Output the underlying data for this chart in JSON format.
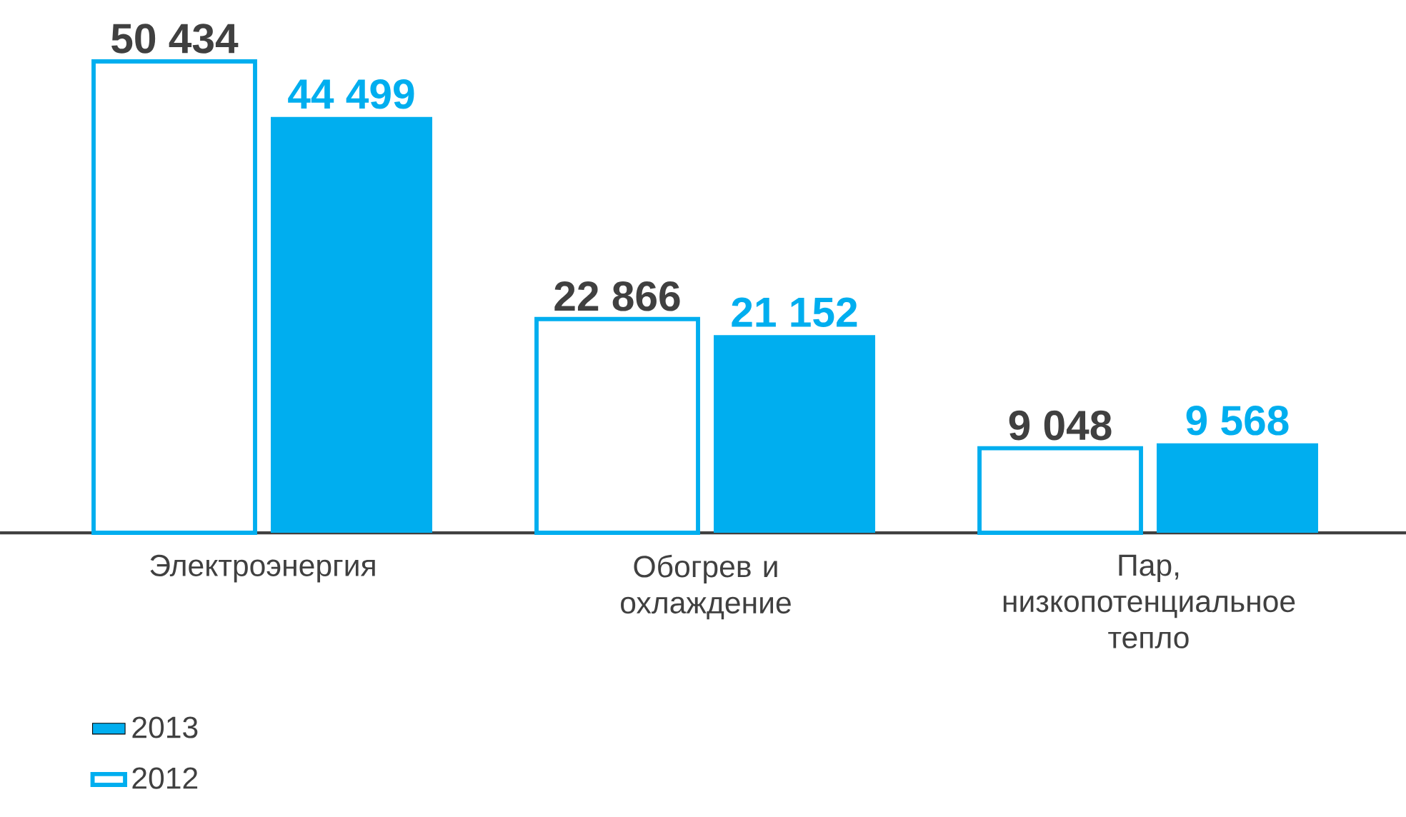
{
  "chart_data": {
    "type": "bar",
    "categories": [
      "Электроэнергия",
      "Обогрев и охлаждение",
      "Пар, низкопотенциальное тепло"
    ],
    "series": [
      {
        "name": "2012",
        "color": "#00aeef",
        "values": [
          50434,
          22866,
          9048
        ],
        "value_labels": [
          "50 434",
          "22 866",
          "9 048"
        ]
      },
      {
        "name": "2013",
        "color": "#00aeef",
        "values": [
          44499,
          21152,
          9568
        ],
        "value_labels": [
          "44 499",
          "21 152",
          "9 568"
        ]
      }
    ],
    "legend": "bottom left"
  }
}
